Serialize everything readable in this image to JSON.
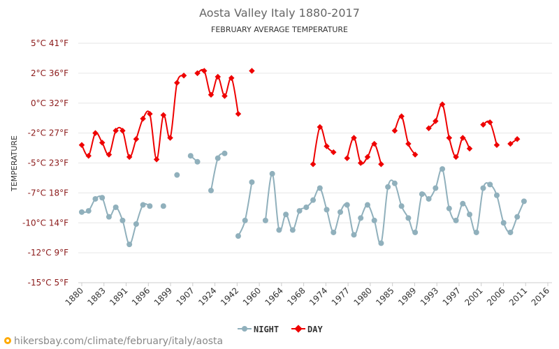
{
  "chart_data": {
    "type": "line",
    "title": "Aosta Valley Italy 1880-2017",
    "subtitle": "FEBRUARY AVERAGE TEMPERATURE",
    "ylabel": "TEMPERATURE",
    "y_ticks": [
      {
        "c": 5,
        "label": "5°C 41°F"
      },
      {
        "c": 2.5,
        "label": "2°C 36°F"
      },
      {
        "c": 0,
        "label": "0°C 32°F"
      },
      {
        "c": -2.5,
        "label": "-2°C 27°F"
      },
      {
        "c": -5,
        "label": "-5°C 23°F"
      },
      {
        "c": -7.5,
        "label": "-7°C 18°F"
      },
      {
        "c": -10,
        "label": "-10°C 14°F"
      },
      {
        "c": -12.5,
        "label": "-12°C 9°F"
      },
      {
        "c": -15,
        "label": "-15°C 5°F"
      }
    ],
    "ylim": [
      -15,
      5
    ],
    "xlim": [
      1880,
      2017
    ],
    "x_tick_labels": [
      "1880",
      "1883",
      "1891",
      "1896",
      "1899",
      "1907",
      "1924",
      "1942",
      "1960",
      "1964",
      "1968",
      "1974",
      "1977",
      "1980",
      "1985",
      "1989",
      "1993",
      "1997",
      "2001",
      "2006",
      "2011",
      "2016"
    ],
    "grid": true,
    "legend_position": "bottom",
    "series": [
      {
        "name": "NIGHT",
        "color": "#90b0bc",
        "marker": "circle",
        "points": [
          [
            1880,
            -9.1
          ],
          [
            1882,
            -9.0
          ],
          [
            1884,
            -8.0
          ],
          [
            1886,
            -7.9
          ],
          [
            1888,
            -9.5
          ],
          [
            1890,
            -8.7
          ],
          [
            1892,
            -9.8
          ],
          [
            1894,
            -11.8
          ],
          [
            1896,
            -10.1
          ],
          [
            1898,
            -8.5
          ],
          [
            1900,
            -8.6
          ],
          null,
          [
            1904,
            -8.6
          ],
          null,
          [
            1908,
            -6.0
          ],
          null,
          [
            1912,
            -4.4
          ],
          [
            1914,
            -4.9
          ],
          null,
          [
            1918,
            -7.3
          ],
          [
            1920,
            -4.6
          ],
          [
            1922,
            -4.2
          ],
          null,
          [
            1926,
            -11.1
          ],
          [
            1928,
            -9.8
          ],
          [
            1930,
            -6.6
          ],
          null,
          [
            1934,
            -9.8
          ],
          [
            1936,
            -5.9
          ],
          [
            1938,
            -10.6
          ],
          [
            1940,
            -9.3
          ],
          [
            1942,
            -10.6
          ],
          [
            1944,
            -9.0
          ],
          [
            1946,
            -8.7
          ],
          [
            1948,
            -8.1
          ],
          [
            1950,
            -7.1
          ],
          [
            1952,
            -8.9
          ],
          [
            1954,
            -10.8
          ],
          [
            1956,
            -9.1
          ],
          [
            1958,
            -8.5
          ],
          [
            1960,
            -11.0
          ],
          [
            1962,
            -9.6
          ],
          [
            1964,
            -8.5
          ],
          [
            1966,
            -9.8
          ],
          [
            1968,
            -11.7
          ],
          [
            1970,
            -7.0
          ],
          [
            1972,
            -6.7
          ],
          [
            1974,
            -8.6
          ],
          [
            1976,
            -9.6
          ],
          [
            1978,
            -10.8
          ],
          [
            1980,
            -7.6
          ],
          [
            1982,
            -8.0
          ],
          [
            1984,
            -7.1
          ],
          [
            1986,
            -5.5
          ],
          [
            1988,
            -8.8
          ],
          [
            1990,
            -9.8
          ],
          [
            1992,
            -8.4
          ],
          [
            1994,
            -9.3
          ],
          [
            1996,
            -10.8
          ],
          [
            1998,
            -7.1
          ],
          [
            2000,
            -6.8
          ],
          [
            2002,
            -7.7
          ],
          [
            2004,
            -10.0
          ],
          [
            2006,
            -10.8
          ],
          [
            2008,
            -9.5
          ],
          [
            2010,
            -8.2
          ]
        ]
      },
      {
        "name": "DAY",
        "color": "#ee0000",
        "marker": "diamond",
        "points": [
          [
            1880,
            -3.5
          ],
          [
            1882,
            -4.4
          ],
          [
            1884,
            -2.5
          ],
          [
            1886,
            -3.3
          ],
          [
            1888,
            -4.3
          ],
          [
            1890,
            -2.3
          ],
          [
            1892,
            -2.3
          ],
          [
            1894,
            -4.5
          ],
          [
            1896,
            -3.0
          ],
          [
            1898,
            -1.3
          ],
          [
            1900,
            -0.9
          ],
          [
            1902,
            -4.7
          ],
          [
            1904,
            -1.0
          ],
          [
            1906,
            -2.9
          ],
          [
            1908,
            1.7
          ],
          [
            1910,
            2.3
          ],
          null,
          [
            1914,
            2.5
          ],
          [
            1916,
            2.7
          ],
          [
            1918,
            0.7
          ],
          [
            1920,
            2.2
          ],
          [
            1922,
            0.6
          ],
          [
            1924,
            2.1
          ],
          [
            1926,
            -0.9
          ],
          null,
          [
            1930,
            2.7
          ],
          null,
          [
            1948,
            -5.1
          ],
          [
            1950,
            -2.0
          ],
          [
            1952,
            -3.6
          ],
          [
            1954,
            -4.1
          ],
          null,
          [
            1958,
            -4.6
          ],
          [
            1960,
            -2.9
          ],
          [
            1962,
            -5.0
          ],
          [
            1964,
            -4.5
          ],
          [
            1966,
            -3.4
          ],
          [
            1968,
            -5.1
          ],
          null,
          [
            1972,
            -2.3
          ],
          [
            1974,
            -1.1
          ],
          [
            1976,
            -3.4
          ],
          [
            1978,
            -4.3
          ],
          null,
          [
            1982,
            -2.1
          ],
          [
            1984,
            -1.5
          ],
          [
            1986,
            -0.1
          ],
          [
            1988,
            -2.9
          ],
          [
            1990,
            -4.5
          ],
          [
            1992,
            -2.9
          ],
          [
            1994,
            -3.8
          ],
          null,
          [
            1998,
            -1.8
          ],
          [
            2000,
            -1.6
          ],
          [
            2002,
            -3.5
          ],
          null,
          [
            2006,
            -3.4
          ],
          [
            2008,
            -3.0
          ]
        ]
      }
    ]
  },
  "legend": {
    "night_label": "NIGHT",
    "day_label": "DAY"
  },
  "footer": {
    "text": "hikersbay.com/climate/february/italy/aosta"
  }
}
